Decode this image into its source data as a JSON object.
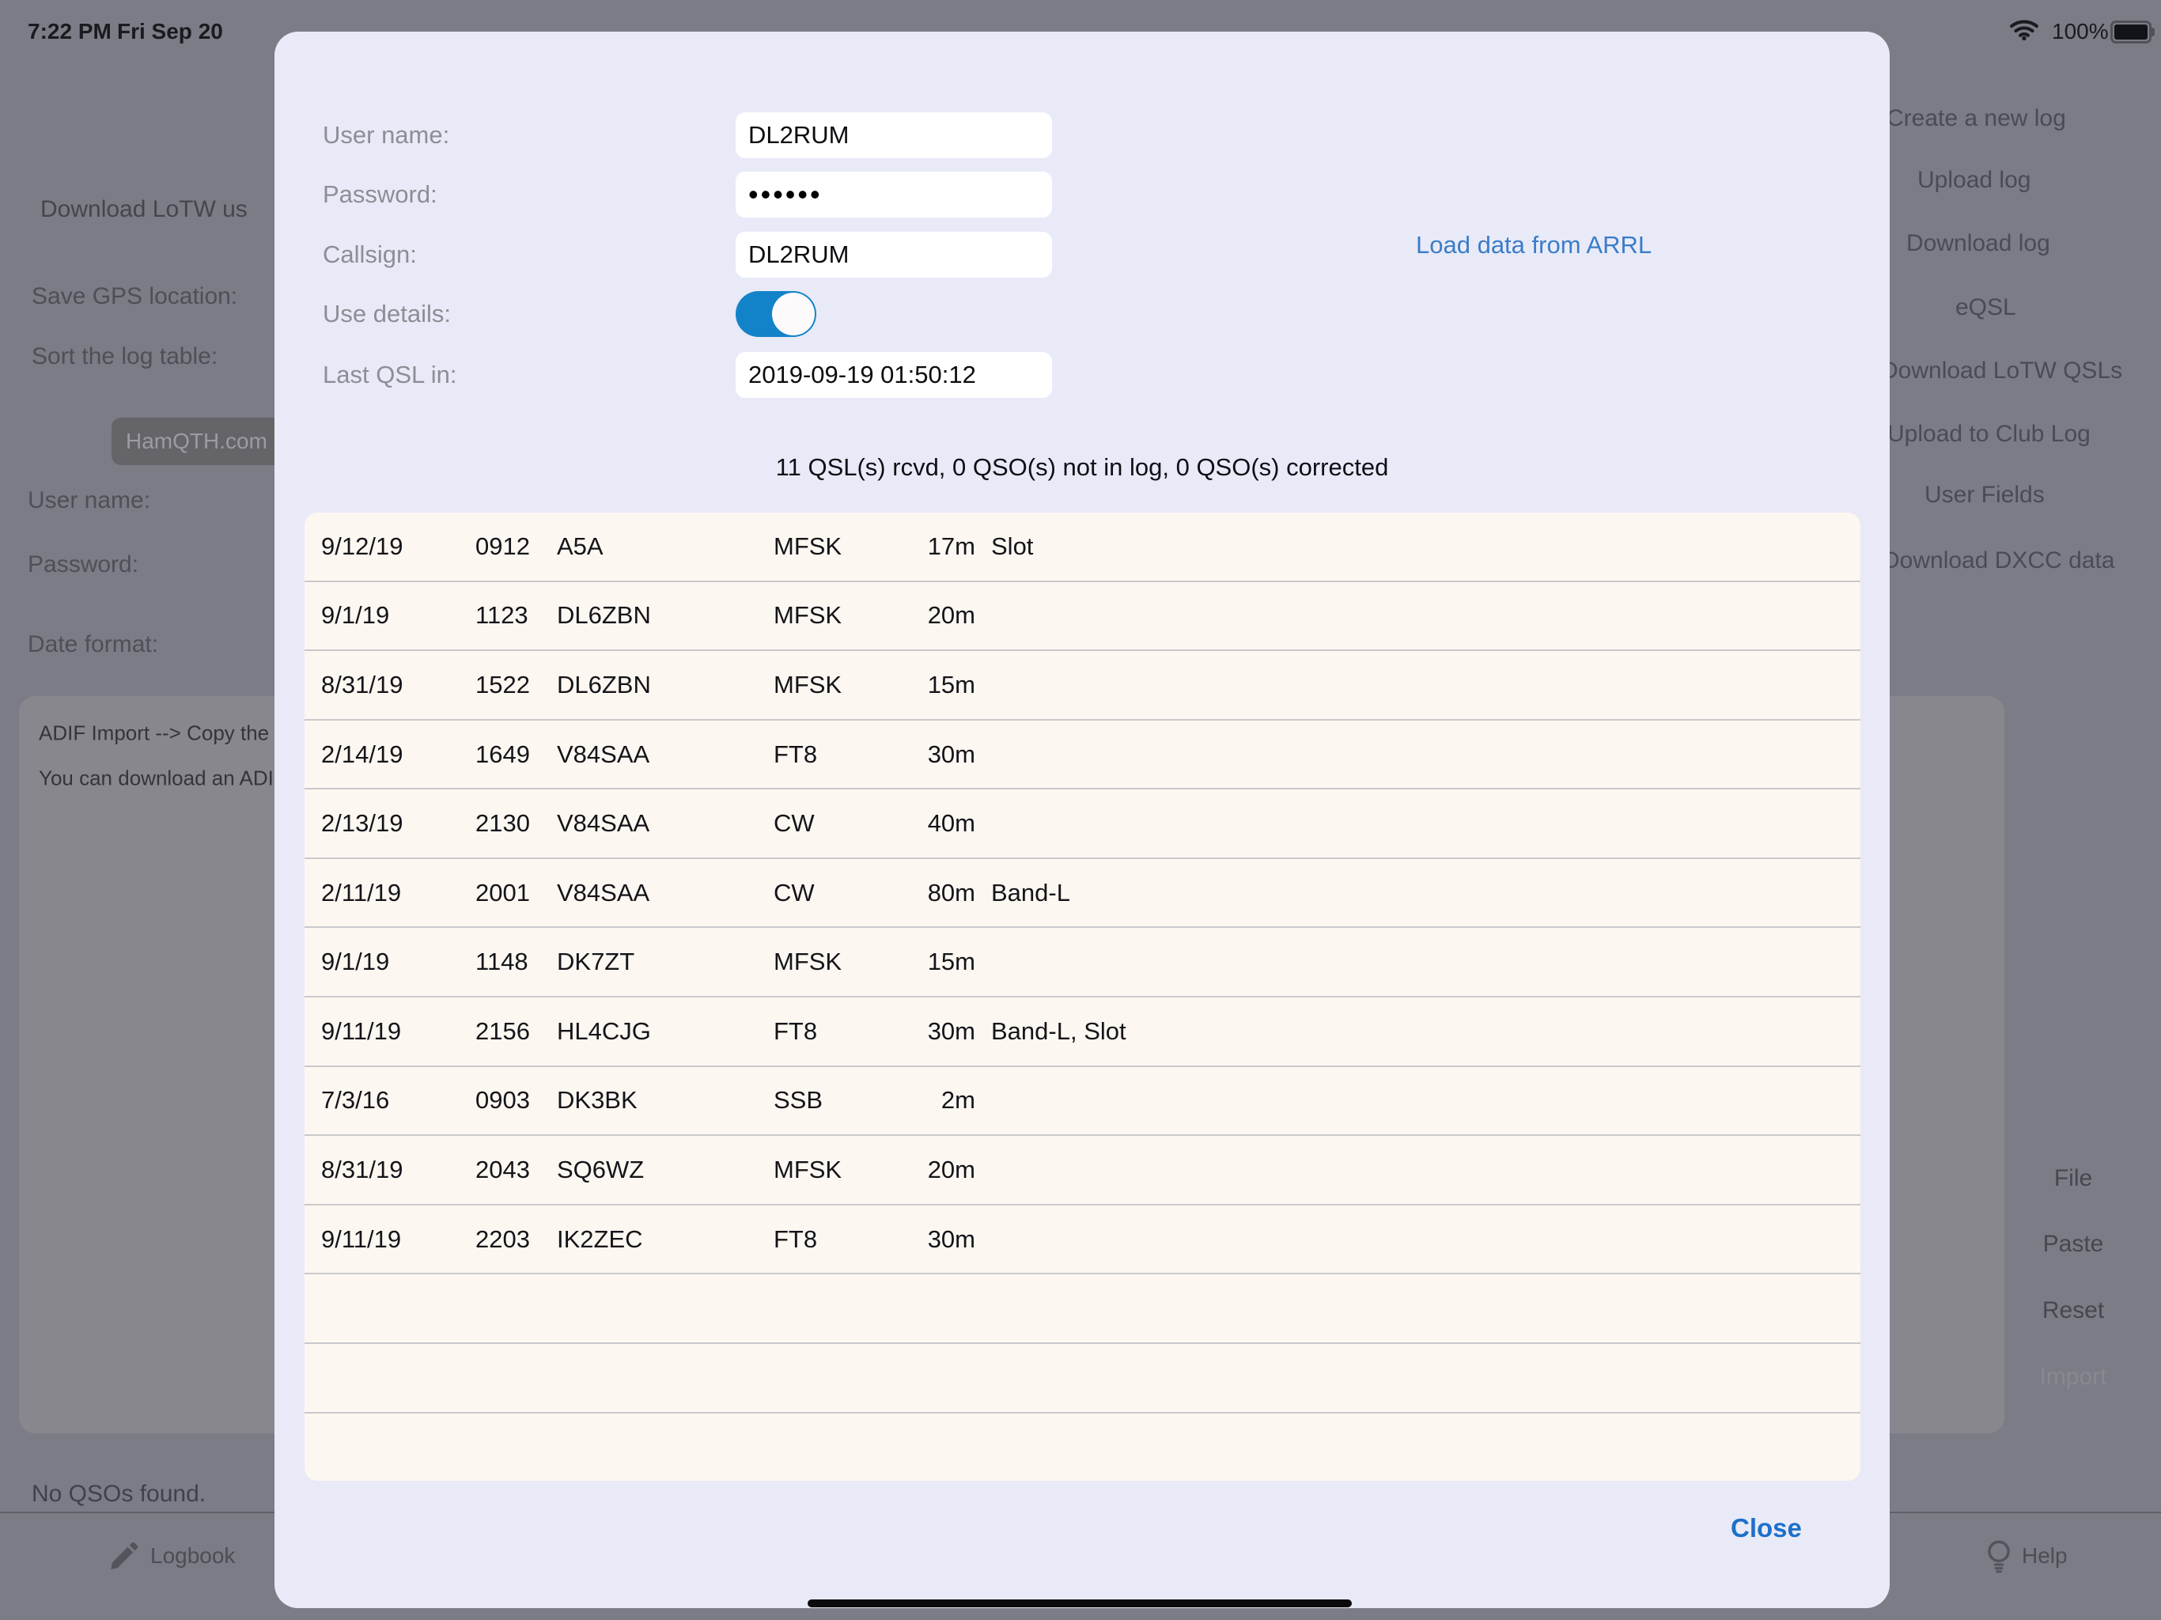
{
  "status_bar": {
    "time": "7:22 PM",
    "date": "Fri Sep 20",
    "battery_percent": "100%"
  },
  "background": {
    "settings_heading": "Download LoTW us",
    "save_gps_label": "Save GPS location:",
    "sort_log_label": "Sort the log table:",
    "hamqth_button": "HamQTH.com",
    "user_name_label": "User name:",
    "password_label": "Password:",
    "date_format_label": "Date format:",
    "adif_line1": "ADIF Import --> Copy the",
    "adif_line2": "You can download an ADIF",
    "menu_items": [
      "Create a new log",
      "Upload log",
      "Download log",
      "eQSL",
      "Download LoTW QSLs",
      "Upload to Club Log",
      "User Fields",
      "Download DXCC data"
    ],
    "action_buttons": [
      "File",
      "Paste",
      "Reset",
      "Import"
    ],
    "no_qsos_text": "No QSOs found.",
    "tab_logbook": "Logbook",
    "tab_help": "Help"
  },
  "modal": {
    "form": {
      "username_label": "User name:",
      "username_value": "DL2RUM",
      "password_label": "Password:",
      "password_value": "••••••",
      "callsign_label": "Callsign:",
      "callsign_value": "DL2RUM",
      "use_details_label": "Use details:",
      "use_details_state": "on",
      "last_qsl_label": "Last QSL in:",
      "last_qsl_value": "2019-09-19 01:50:12"
    },
    "arrl_link": "Load data from ARRL",
    "summary": "11 QSL(s) rcvd, 0 QSO(s) not in log, 0 QSO(s) corrected",
    "qsl_rows": [
      {
        "date": "9/12/19",
        "time": "0912",
        "call": "A5A",
        "mode": "MFSK",
        "band": "17m",
        "note": "Slot"
      },
      {
        "date": "9/1/19",
        "time": "1123",
        "call": "DL6ZBN",
        "mode": "MFSK",
        "band": "20m",
        "note": ""
      },
      {
        "date": "8/31/19",
        "time": "1522",
        "call": "DL6ZBN",
        "mode": "MFSK",
        "band": "15m",
        "note": ""
      },
      {
        "date": "2/14/19",
        "time": "1649",
        "call": "V84SAA",
        "mode": "FT8",
        "band": "30m",
        "note": ""
      },
      {
        "date": "2/13/19",
        "time": "2130",
        "call": "V84SAA",
        "mode": "CW",
        "band": "40m",
        "note": ""
      },
      {
        "date": "2/11/19",
        "time": "2001",
        "call": "V84SAA",
        "mode": "CW",
        "band": "80m",
        "note": "Band-L"
      },
      {
        "date": "9/1/19",
        "time": "1148",
        "call": "DK7ZT",
        "mode": "MFSK",
        "band": "15m",
        "note": ""
      },
      {
        "date": "9/11/19",
        "time": "2156",
        "call": "HL4CJG",
        "mode": "FT8",
        "band": "30m",
        "note": "Band-L, Slot"
      },
      {
        "date": "7/3/16",
        "time": "0903",
        "call": "DK3BK",
        "mode": "SSB",
        "band": "2m",
        "note": ""
      },
      {
        "date": "8/31/19",
        "time": "2043",
        "call": "SQ6WZ",
        "mode": "MFSK",
        "band": "20m",
        "note": ""
      },
      {
        "date": "9/11/19",
        "time": "2203",
        "call": "IK2ZEC",
        "mode": "FT8",
        "band": "30m",
        "note": ""
      }
    ],
    "empty_row_count": 3,
    "close_label": "Close"
  },
  "colors": {
    "accent_blue": "#3b7dc8",
    "toggle_blue": "#1283c8",
    "close_blue": "#1d70c8",
    "modal_bg": "#e9eaf8",
    "table_bg": "#fdf7f1",
    "dim_bg": "#7b7c85"
  }
}
